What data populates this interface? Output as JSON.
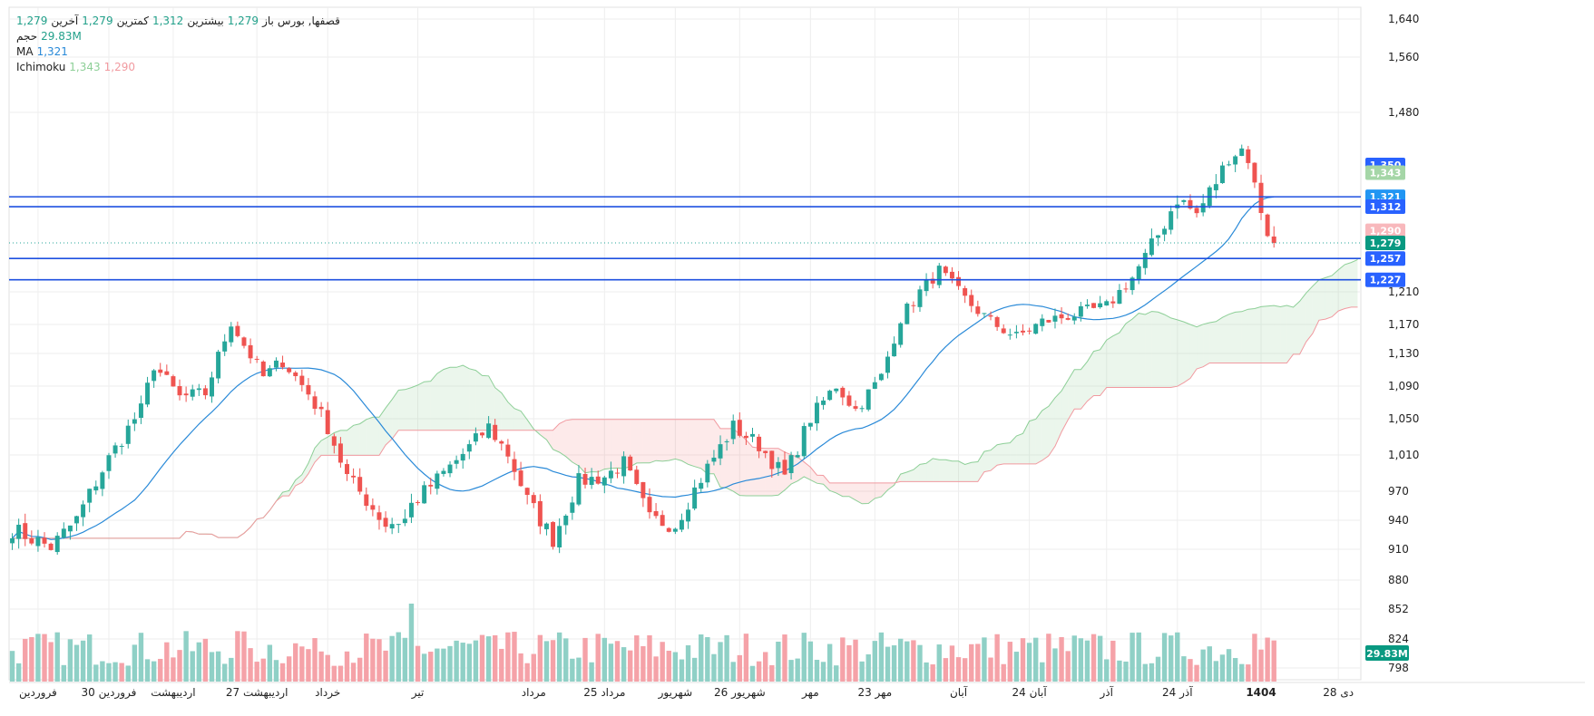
{
  "header": {
    "symbol": "قصفها, بورس",
    "open_label": "باز",
    "open_value": "1,279",
    "high_label": "بیشترین",
    "high_value": "1,312",
    "low_label": "کمترین",
    "low_value": "1,279",
    "close_label": "آخرین",
    "close_value": "1,279",
    "volume_label": "حجم",
    "volume_value": "29.83M",
    "ma_label": "MA",
    "ma_value": "1,321",
    "ichimoku_label": "Ichimoku",
    "ichimoku_value1": "1,343",
    "ichimoku_value2": "1,290"
  },
  "chart_data": {
    "type": "candlestick",
    "y_ticks": [
      1640,
      1560,
      1480,
      1210,
      1170,
      1130,
      1090,
      1050,
      1010,
      970,
      940,
      910,
      880,
      852,
      824,
      798
    ],
    "y_tick_labels": [
      "1,640",
      "1,560",
      "1,480",
      "1,210",
      "1,170",
      "1,130",
      "1,090",
      "1,050",
      "1,010",
      "970",
      "940",
      "910",
      "880",
      "852",
      "824",
      "798"
    ],
    "x_labels": [
      {
        "label": "فروردین",
        "bar": 4
      },
      {
        "label": "30 فروردین",
        "bar": 15
      },
      {
        "label": "اردیبهشت",
        "bar": 25
      },
      {
        "label": "27 اردیبهشت",
        "bar": 38
      },
      {
        "label": "خرداد",
        "bar": 49
      },
      {
        "label": "تیر",
        "bar": 63
      },
      {
        "label": "مرداد",
        "bar": 81
      },
      {
        "label": "25 مرداد",
        "bar": 92
      },
      {
        "label": "شهریور",
        "bar": 103
      },
      {
        "label": "26 شهریور",
        "bar": 113
      },
      {
        "label": "مهر",
        "bar": 124
      },
      {
        "label": "23 مهر",
        "bar": 134
      },
      {
        "label": "آبان",
        "bar": 147
      },
      {
        "label": "24 آبان",
        "bar": 158
      },
      {
        "label": "آذر",
        "bar": 170
      },
      {
        "label": "24 آذر",
        "bar": 181
      },
      {
        "label": "1404",
        "bar": 194
      },
      {
        "label": "دی 28",
        "bar": 206
      }
    ],
    "h_lines": [
      1321,
      1312,
      1257,
      1227
    ],
    "dotted_line": 1279,
    "price_tags": [
      {
        "label": "1,350",
        "value": 1350,
        "color": "#2962ff"
      },
      {
        "label": "1,343",
        "value": 1343,
        "color": "#a5d6a7"
      },
      {
        "label": "1,321",
        "value": 1321,
        "color": "#2196f3"
      },
      {
        "label": "1,312",
        "value": 1312,
        "color": "#2962ff"
      },
      {
        "label": "1,290",
        "value": 1290,
        "color": "#f8b8bc"
      },
      {
        "label": "1,279",
        "value": 1279,
        "color": "#089981"
      },
      {
        "label": "1,257",
        "value": 1257,
        "color": "#2962ff"
      },
      {
        "label": "1,227",
        "value": 1227,
        "color": "#2962ff"
      }
    ],
    "volume_tag": {
      "label": "29.83M",
      "color": "#089981"
    },
    "seed": 7
  },
  "colors": {
    "up": "#26a69a",
    "down": "#ef5350",
    "up_vol": "#8fd0c6",
    "down_vol": "#f5a2a8",
    "ma": "#2a8ad8",
    "h_line": "#1e50e0",
    "grid": "#eeeeee"
  }
}
